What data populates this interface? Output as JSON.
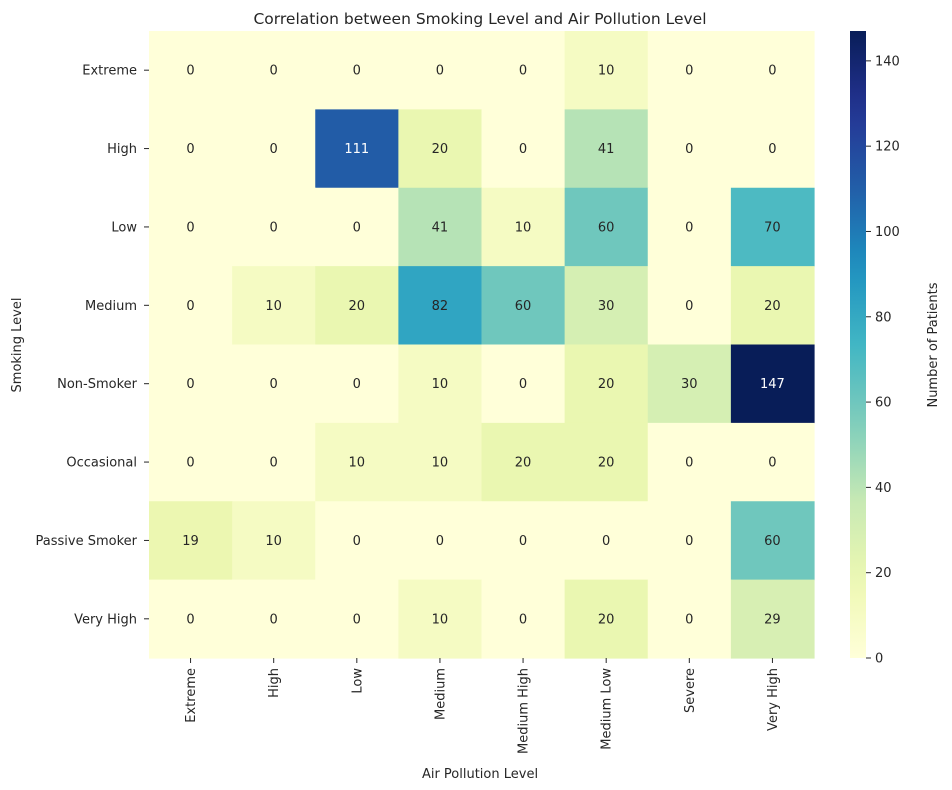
{
  "chart_data": {
    "type": "heatmap",
    "title": "Correlation between Smoking Level and Air Pollution Level",
    "xlabel": "Air Pollution Level",
    "ylabel": "Smoking Level",
    "x_categories": [
      "Extreme",
      "High",
      "Low",
      "Medium",
      "Medium High",
      "Medium Low",
      "Severe",
      "Very High"
    ],
    "y_categories": [
      "Extreme",
      "High",
      "Low",
      "Medium",
      "Non-Smoker",
      "Occasional",
      "Passive Smoker",
      "Very High"
    ],
    "values": [
      [
        0,
        0,
        0,
        0,
        0,
        10,
        0,
        0
      ],
      [
        0,
        0,
        111,
        20,
        0,
        41,
        0,
        0
      ],
      [
        0,
        0,
        0,
        41,
        10,
        60,
        0,
        70
      ],
      [
        0,
        10,
        20,
        82,
        60,
        30,
        0,
        20
      ],
      [
        0,
        0,
        0,
        10,
        0,
        20,
        30,
        147
      ],
      [
        0,
        0,
        10,
        10,
        20,
        20,
        0,
        0
      ],
      [
        19,
        10,
        0,
        0,
        0,
        0,
        0,
        60
      ],
      [
        0,
        0,
        0,
        10,
        0,
        20,
        0,
        29
      ]
    ],
    "colorbar": {
      "label": "Number of Patients",
      "range": [
        0,
        147
      ],
      "ticks": [
        0,
        20,
        40,
        60,
        80,
        100,
        120,
        140
      ],
      "colormap": "YlGnBu"
    }
  }
}
